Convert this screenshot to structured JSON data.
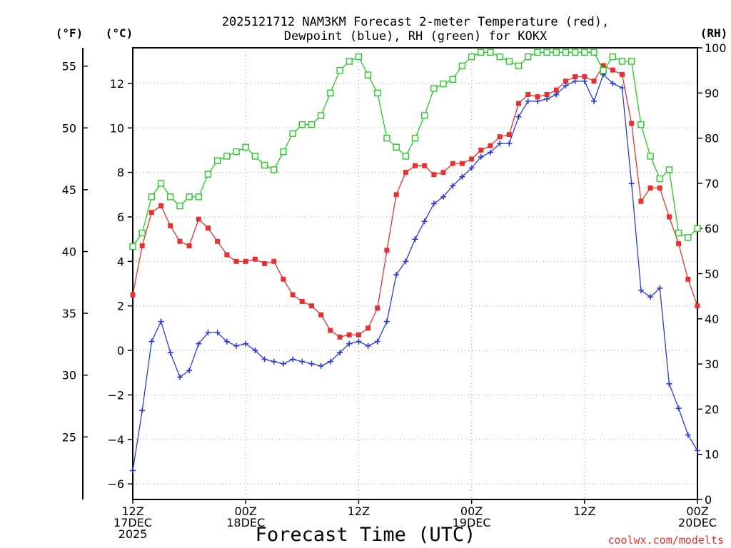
{
  "chart_data": {
    "type": "line",
    "title": {
      "line1": "2025121712 NAM3KM Forecast 2-meter Temperature (red),",
      "line2": "Dewpoint (blue), RH (green) for KOKX"
    },
    "xlabel": "Forecast Time (UTC)",
    "units": {
      "fahrenheit": "(°F)",
      "celsius": "(°C)",
      "rh": "(RH)"
    },
    "x_range_hours": [
      0,
      60
    ],
    "x_ticks": [
      {
        "hour": 0,
        "lines": [
          "12Z",
          "17DEC",
          "2025"
        ]
      },
      {
        "hour": 12,
        "lines": [
          "00Z",
          "18DEC"
        ]
      },
      {
        "hour": 24,
        "lines": [
          "12Z"
        ]
      },
      {
        "hour": 36,
        "lines": [
          "00Z",
          "19DEC"
        ]
      },
      {
        "hour": 48,
        "lines": [
          "12Z"
        ]
      },
      {
        "hour": 60,
        "lines": [
          "00Z",
          "20DEC"
        ]
      }
    ],
    "celsius_axis": {
      "range": [
        -6.7,
        13.6
      ],
      "ticks": [
        -6,
        -4,
        -2,
        0,
        2,
        4,
        6,
        8,
        10,
        12
      ]
    },
    "fahrenheit_axis": {
      "ticks": [
        25,
        30,
        35,
        40,
        45,
        50,
        55
      ]
    },
    "rh_axis": {
      "range": [
        0,
        100
      ],
      "ticks": [
        0,
        10,
        20,
        30,
        40,
        50,
        60,
        70,
        80,
        90,
        100
      ]
    },
    "gridlines": true,
    "credit": "coolwx.com/modelts",
    "series": [
      {
        "name": "2-meter Temperature",
        "axis": "celsius",
        "color": "#e83030",
        "marker": "filled-square",
        "values": [
          2.5,
          4.7,
          6.2,
          6.5,
          5.6,
          4.9,
          4.7,
          5.9,
          5.5,
          4.9,
          4.3,
          4.0,
          4.0,
          4.1,
          3.9,
          4.0,
          3.2,
          2.5,
          2.2,
          2.0,
          1.6,
          0.9,
          0.6,
          0.7,
          0.7,
          1.0,
          1.9,
          4.5,
          7.0,
          8.0,
          8.3,
          8.3,
          7.9,
          8.0,
          8.4,
          8.4,
          8.6,
          9.0,
          9.2,
          9.6,
          9.7,
          11.1,
          11.5,
          11.4,
          11.5,
          11.7,
          12.1,
          12.3,
          12.3,
          12.1,
          12.8,
          12.6,
          12.4,
          10.2,
          6.7,
          7.3,
          7.3,
          6.0,
          4.8,
          3.2,
          2.0
        ]
      },
      {
        "name": "Dewpoint",
        "axis": "celsius",
        "color": "#2b3bd8",
        "marker": "plus",
        "values": [
          -5.4,
          -2.7,
          0.4,
          1.3,
          -0.1,
          -1.2,
          -0.9,
          0.3,
          0.8,
          0.8,
          0.4,
          0.2,
          0.3,
          0.0,
          -0.4,
          -0.5,
          -0.6,
          -0.4,
          -0.5,
          -0.6,
          -0.7,
          -0.5,
          -0.1,
          0.3,
          0.4,
          0.2,
          0.4,
          1.3,
          3.4,
          4.0,
          5.0,
          5.8,
          6.6,
          6.9,
          7.4,
          7.8,
          8.2,
          8.7,
          8.9,
          9.3,
          9.3,
          10.5,
          11.2,
          11.2,
          11.3,
          11.5,
          11.9,
          12.1,
          12.1,
          11.2,
          12.4,
          12.0,
          11.8,
          7.5,
          2.7,
          2.4,
          2.8,
          -1.5,
          -2.6,
          -3.8,
          -4.5
        ]
      },
      {
        "name": "RH",
        "axis": "rh",
        "color": "#22cc22",
        "marker": "open-square",
        "values": [
          56,
          59,
          67,
          70,
          67,
          65,
          67,
          67,
          72,
          75,
          76,
          77,
          78,
          76,
          74,
          73,
          77,
          81,
          83,
          83,
          85,
          90,
          95,
          97,
          98,
          94,
          90,
          80,
          78,
          76,
          80,
          85,
          91,
          92,
          93,
          96,
          98,
          99,
          99,
          98,
          97,
          96,
          98,
          99,
          99,
          99,
          99,
          99,
          99,
          99,
          95,
          98,
          97,
          97,
          83,
          76,
          71,
          73,
          59,
          58,
          60
        ]
      }
    ]
  }
}
